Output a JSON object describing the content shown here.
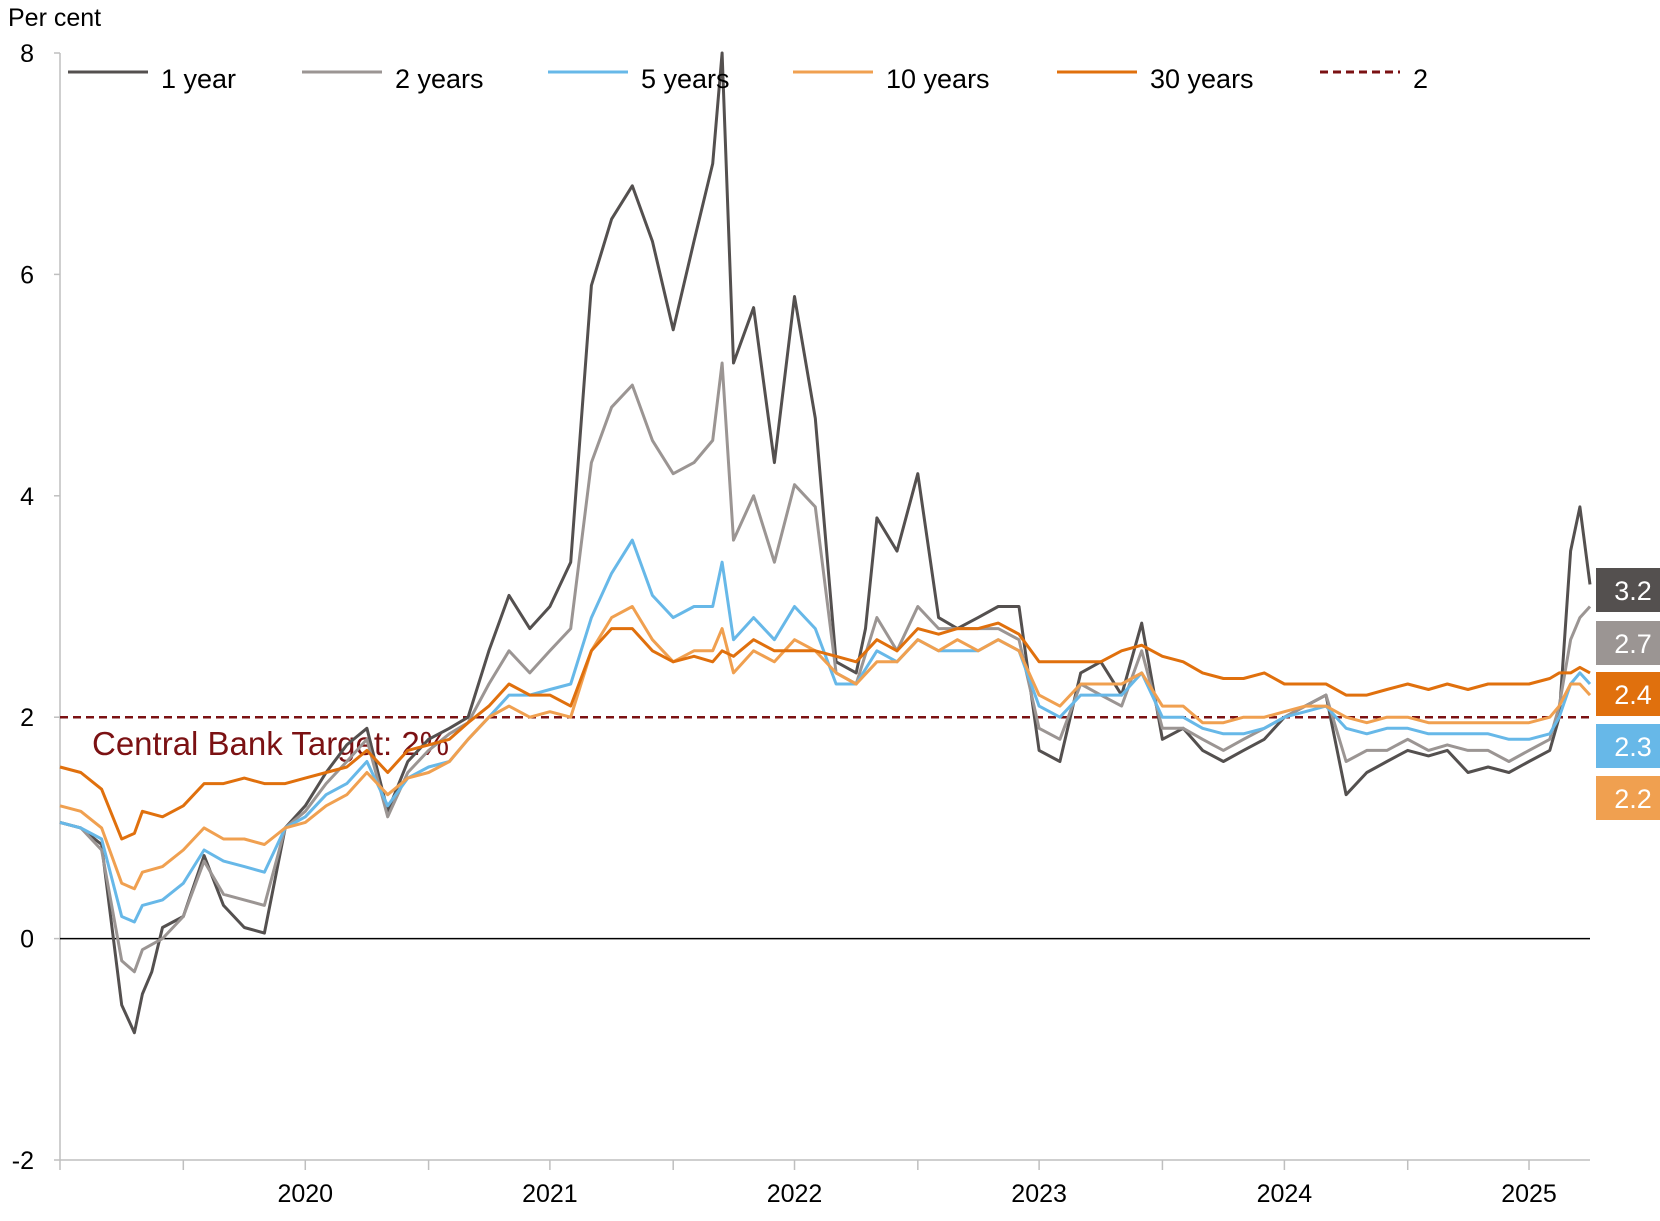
{
  "chart_data": {
    "type": "line",
    "ylabel": "Per cent",
    "ylim": [
      -2,
      8
    ],
    "yticks": [
      -2,
      0,
      2,
      4,
      6,
      8
    ],
    "xlim": [
      "2019-07-01",
      "2025-09-30"
    ],
    "xtick_labels": [
      "2020",
      "2021",
      "2022",
      "2023",
      "2024",
      "2025"
    ],
    "grid": false,
    "legend_placement": "top",
    "target": {
      "value": 2,
      "legend_label": "2",
      "annotation": "Central Bank Target: 2%",
      "color": "#7b1113"
    },
    "end_labels": [
      {
        "text": "3.2",
        "color": "#54504f",
        "series": "1 year"
      },
      {
        "text": "2.7",
        "color": "#9b9593",
        "series": "2 years"
      },
      {
        "text": "2.4",
        "color": "#e0700d",
        "series": "30 years"
      },
      {
        "text": "2.3",
        "color": "#67b8e8",
        "series": "5 years"
      },
      {
        "text": "2.2",
        "color": "#f0a050",
        "series": "10 years"
      }
    ],
    "series": [
      {
        "name": "1 year",
        "color": "#54504f",
        "x": [
          "2019-07-01",
          "2019-08-01",
          "2019-09-01",
          "2019-10-01",
          "2019-10-20",
          "2019-11-01",
          "2019-11-15",
          "2019-12-01",
          "2020-01-01",
          "2020-02-01",
          "2020-03-01",
          "2020-04-01",
          "2020-05-01",
          "2020-06-01",
          "2020-07-01",
          "2020-08-01",
          "2020-09-01",
          "2020-10-01",
          "2020-11-01",
          "2020-12-01",
          "2021-01-01",
          "2021-02-01",
          "2021-03-01",
          "2021-04-01",
          "2021-05-01",
          "2021-06-01",
          "2021-07-01",
          "2021-08-01",
          "2021-09-01",
          "2021-10-01",
          "2021-11-01",
          "2021-12-01",
          "2022-01-01",
          "2022-02-01",
          "2022-03-01",
          "2022-03-15",
          "2022-04-01",
          "2022-05-01",
          "2022-06-01",
          "2022-07-01",
          "2022-08-01",
          "2022-09-01",
          "2022-10-01",
          "2022-10-15",
          "2022-11-01",
          "2022-12-01",
          "2023-01-01",
          "2023-02-01",
          "2023-03-01",
          "2023-04-01",
          "2023-05-01",
          "2023-06-01",
          "2023-07-01",
          "2023-08-01",
          "2023-09-01",
          "2023-10-01",
          "2023-11-01",
          "2023-12-01",
          "2024-01-01",
          "2024-02-01",
          "2024-03-01",
          "2024-04-01",
          "2024-05-01",
          "2024-06-01",
          "2024-07-01",
          "2024-08-01",
          "2024-09-01",
          "2024-10-01",
          "2024-11-01",
          "2024-12-01",
          "2025-01-01",
          "2025-02-01",
          "2025-03-01",
          "2025-04-01",
          "2025-05-01",
          "2025-06-01",
          "2025-07-01",
          "2025-08-01",
          "2025-08-15",
          "2025-09-01",
          "2025-09-15",
          "2025-09-30"
        ],
        "y": [
          1.05,
          1.0,
          0.85,
          -0.6,
          -0.85,
          -0.5,
          -0.3,
          0.1,
          0.2,
          0.75,
          0.3,
          0.1,
          0.05,
          1.0,
          1.2,
          1.5,
          1.75,
          1.9,
          1.15,
          1.6,
          1.8,
          1.9,
          2.0,
          2.6,
          3.1,
          2.8,
          3.0,
          3.4,
          5.9,
          6.5,
          6.8,
          6.3,
          5.5,
          6.3,
          7.0,
          8.0,
          5.2,
          5.7,
          4.3,
          5.8,
          4.7,
          2.5,
          2.4,
          2.8,
          3.8,
          3.5,
          4.2,
          2.9,
          2.8,
          2.9,
          3.0,
          3.0,
          1.7,
          1.6,
          2.4,
          2.5,
          2.2,
          2.85,
          1.8,
          1.9,
          1.7,
          1.6,
          1.7,
          1.8,
          2.0,
          2.1,
          2.2,
          1.3,
          1.5,
          1.6,
          1.7,
          1.65,
          1.7,
          1.5,
          1.55,
          1.5,
          1.6,
          1.7,
          2.0,
          3.5,
          3.9,
          3.2
        ]
      },
      {
        "name": "2 years",
        "color": "#9b9593",
        "x": [
          "2019-07-01",
          "2019-08-01",
          "2019-09-01",
          "2019-10-01",
          "2019-10-20",
          "2019-11-01",
          "2019-12-01",
          "2020-01-01",
          "2020-02-01",
          "2020-03-01",
          "2020-04-01",
          "2020-05-01",
          "2020-06-01",
          "2020-07-01",
          "2020-08-01",
          "2020-09-01",
          "2020-10-01",
          "2020-11-01",
          "2020-12-01",
          "2021-01-01",
          "2021-02-01",
          "2021-03-01",
          "2021-04-01",
          "2021-05-01",
          "2021-06-01",
          "2021-07-01",
          "2021-08-01",
          "2021-09-01",
          "2021-10-01",
          "2021-11-01",
          "2021-12-01",
          "2022-01-01",
          "2022-02-01",
          "2022-03-01",
          "2022-03-15",
          "2022-04-01",
          "2022-05-01",
          "2022-06-01",
          "2022-07-01",
          "2022-08-01",
          "2022-09-01",
          "2022-10-01",
          "2022-11-01",
          "2022-12-01",
          "2023-01-01",
          "2023-02-01",
          "2023-03-01",
          "2023-04-01",
          "2023-05-01",
          "2023-06-01",
          "2023-07-01",
          "2023-08-01",
          "2023-09-01",
          "2023-10-01",
          "2023-11-01",
          "2023-12-01",
          "2024-01-01",
          "2024-02-01",
          "2024-03-01",
          "2024-04-01",
          "2024-05-01",
          "2024-06-01",
          "2024-07-01",
          "2024-08-01",
          "2024-09-01",
          "2024-10-01",
          "2024-11-01",
          "2024-12-01",
          "2025-01-01",
          "2025-02-01",
          "2025-03-01",
          "2025-04-01",
          "2025-05-01",
          "2025-06-01",
          "2025-07-01",
          "2025-08-01",
          "2025-08-15",
          "2025-09-01",
          "2025-09-15",
          "2025-09-30"
        ],
        "y": [
          1.05,
          1.0,
          0.8,
          -0.2,
          -0.3,
          -0.1,
          0.0,
          0.2,
          0.7,
          0.4,
          0.35,
          0.3,
          1.0,
          1.15,
          1.4,
          1.6,
          1.8,
          1.1,
          1.5,
          1.7,
          1.85,
          1.95,
          2.3,
          2.6,
          2.4,
          2.6,
          2.8,
          4.3,
          4.8,
          5.0,
          4.5,
          4.2,
          4.3,
          4.5,
          5.2,
          3.6,
          4.0,
          3.4,
          4.1,
          3.9,
          2.4,
          2.3,
          2.9,
          2.6,
          3.0,
          2.8,
          2.8,
          2.8,
          2.8,
          2.7,
          1.9,
          1.8,
          2.3,
          2.2,
          2.1,
          2.6,
          1.9,
          1.9,
          1.8,
          1.7,
          1.8,
          1.9,
          2.0,
          2.1,
          2.2,
          1.6,
          1.7,
          1.7,
          1.8,
          1.7,
          1.75,
          1.7,
          1.7,
          1.6,
          1.7,
          1.8,
          2.1,
          2.7,
          2.9,
          3.0
        ]
      },
      {
        "name": "5 years",
        "color": "#67b8e8",
        "x": [
          "2019-07-01",
          "2019-08-01",
          "2019-09-01",
          "2019-10-01",
          "2019-10-20",
          "2019-11-01",
          "2019-12-01",
          "2020-01-01",
          "2020-02-01",
          "2020-03-01",
          "2020-04-01",
          "2020-05-01",
          "2020-06-01",
          "2020-07-01",
          "2020-08-01",
          "2020-09-01",
          "2020-10-01",
          "2020-11-01",
          "2020-12-01",
          "2021-01-01",
          "2021-02-01",
          "2021-03-01",
          "2021-04-01",
          "2021-05-01",
          "2021-06-01",
          "2021-07-01",
          "2021-08-01",
          "2021-09-01",
          "2021-10-01",
          "2021-11-01",
          "2021-12-01",
          "2022-01-01",
          "2022-02-01",
          "2022-03-01",
          "2022-03-15",
          "2022-04-01",
          "2022-05-01",
          "2022-06-01",
          "2022-07-01",
          "2022-08-01",
          "2022-09-01",
          "2022-10-01",
          "2022-11-01",
          "2022-12-01",
          "2023-01-01",
          "2023-02-01",
          "2023-03-01",
          "2023-04-01",
          "2023-05-01",
          "2023-06-01",
          "2023-07-01",
          "2023-08-01",
          "2023-09-01",
          "2023-10-01",
          "2023-11-01",
          "2023-12-01",
          "2024-01-01",
          "2024-02-01",
          "2024-03-01",
          "2024-04-01",
          "2024-05-01",
          "2024-06-01",
          "2024-07-01",
          "2024-08-01",
          "2024-09-01",
          "2024-10-01",
          "2024-11-01",
          "2024-12-01",
          "2025-01-01",
          "2025-02-01",
          "2025-03-01",
          "2025-04-01",
          "2025-05-01",
          "2025-06-01",
          "2025-07-01",
          "2025-08-01",
          "2025-08-15",
          "2025-09-01",
          "2025-09-15",
          "2025-09-30"
        ],
        "y": [
          1.05,
          1.0,
          0.9,
          0.2,
          0.15,
          0.3,
          0.35,
          0.5,
          0.8,
          0.7,
          0.65,
          0.6,
          1.0,
          1.1,
          1.3,
          1.4,
          1.6,
          1.2,
          1.45,
          1.55,
          1.6,
          1.8,
          2.0,
          2.2,
          2.2,
          2.25,
          2.3,
          2.9,
          3.3,
          3.6,
          3.1,
          2.9,
          3.0,
          3.0,
          3.4,
          2.7,
          2.9,
          2.7,
          3.0,
          2.8,
          2.3,
          2.3,
          2.6,
          2.5,
          2.7,
          2.6,
          2.6,
          2.6,
          2.7,
          2.6,
          2.1,
          2.0,
          2.2,
          2.2,
          2.2,
          2.4,
          2.0,
          2.0,
          1.9,
          1.85,
          1.85,
          1.9,
          2.0,
          2.05,
          2.1,
          1.9,
          1.85,
          1.9,
          1.9,
          1.85,
          1.85,
          1.85,
          1.85,
          1.8,
          1.8,
          1.85,
          2.0,
          2.3,
          2.4,
          2.3
        ]
      },
      {
        "name": "10 years",
        "color": "#f0a050",
        "x": [
          "2019-07-01",
          "2019-08-01",
          "2019-09-01",
          "2019-10-01",
          "2019-10-20",
          "2019-11-01",
          "2019-12-01",
          "2020-01-01",
          "2020-02-01",
          "2020-03-01",
          "2020-04-01",
          "2020-05-01",
          "2020-06-01",
          "2020-07-01",
          "2020-08-01",
          "2020-09-01",
          "2020-10-01",
          "2020-11-01",
          "2020-12-01",
          "2021-01-01",
          "2021-02-01",
          "2021-03-01",
          "2021-04-01",
          "2021-05-01",
          "2021-06-01",
          "2021-07-01",
          "2021-08-01",
          "2021-09-01",
          "2021-10-01",
          "2021-11-01",
          "2021-12-01",
          "2022-01-01",
          "2022-02-01",
          "2022-03-01",
          "2022-03-15",
          "2022-04-01",
          "2022-05-01",
          "2022-06-01",
          "2022-07-01",
          "2022-08-01",
          "2022-09-01",
          "2022-10-01",
          "2022-11-01",
          "2022-12-01",
          "2023-01-01",
          "2023-02-01",
          "2023-03-01",
          "2023-04-01",
          "2023-05-01",
          "2023-06-01",
          "2023-07-01",
          "2023-08-01",
          "2023-09-01",
          "2023-10-01",
          "2023-11-01",
          "2023-12-01",
          "2024-01-01",
          "2024-02-01",
          "2024-03-01",
          "2024-04-01",
          "2024-05-01",
          "2024-06-01",
          "2024-07-01",
          "2024-08-01",
          "2024-09-01",
          "2024-10-01",
          "2024-11-01",
          "2024-12-01",
          "2025-01-01",
          "2025-02-01",
          "2025-03-01",
          "2025-04-01",
          "2025-05-01",
          "2025-06-01",
          "2025-07-01",
          "2025-08-01",
          "2025-08-15",
          "2025-09-01",
          "2025-09-15",
          "2025-09-30"
        ],
        "y": [
          1.2,
          1.15,
          1.0,
          0.5,
          0.45,
          0.6,
          0.65,
          0.8,
          1.0,
          0.9,
          0.9,
          0.85,
          1.0,
          1.05,
          1.2,
          1.3,
          1.5,
          1.3,
          1.45,
          1.5,
          1.6,
          1.8,
          2.0,
          2.1,
          2.0,
          2.05,
          2.0,
          2.6,
          2.9,
          3.0,
          2.7,
          2.5,
          2.6,
          2.6,
          2.8,
          2.4,
          2.6,
          2.5,
          2.7,
          2.6,
          2.4,
          2.3,
          2.5,
          2.5,
          2.7,
          2.6,
          2.7,
          2.6,
          2.7,
          2.6,
          2.2,
          2.1,
          2.3,
          2.3,
          2.3,
          2.4,
          2.1,
          2.1,
          1.95,
          1.95,
          2.0,
          2.0,
          2.05,
          2.1,
          2.1,
          2.0,
          1.95,
          2.0,
          2.0,
          1.95,
          1.95,
          1.95,
          1.95,
          1.95,
          1.95,
          2.0,
          2.1,
          2.3,
          2.3,
          2.2
        ]
      },
      {
        "name": "30 years",
        "color": "#e0700d",
        "x": [
          "2019-07-01",
          "2019-08-01",
          "2019-09-01",
          "2019-10-01",
          "2019-10-20",
          "2019-11-01",
          "2019-12-01",
          "2020-01-01",
          "2020-02-01",
          "2020-03-01",
          "2020-04-01",
          "2020-05-01",
          "2020-06-01",
          "2020-07-01",
          "2020-08-01",
          "2020-09-01",
          "2020-10-01",
          "2020-11-01",
          "2020-12-01",
          "2021-01-01",
          "2021-02-01",
          "2021-03-01",
          "2021-04-01",
          "2021-05-01",
          "2021-06-01",
          "2021-07-01",
          "2021-08-01",
          "2021-09-01",
          "2021-10-01",
          "2021-11-01",
          "2021-12-01",
          "2022-01-01",
          "2022-02-01",
          "2022-03-01",
          "2022-03-15",
          "2022-04-01",
          "2022-05-01",
          "2022-06-01",
          "2022-07-01",
          "2022-08-01",
          "2022-09-01",
          "2022-10-01",
          "2022-11-01",
          "2022-12-01",
          "2023-01-01",
          "2023-02-01",
          "2023-03-01",
          "2023-04-01",
          "2023-05-01",
          "2023-06-01",
          "2023-07-01",
          "2023-08-01",
          "2023-09-01",
          "2023-10-01",
          "2023-11-01",
          "2023-12-01",
          "2024-01-01",
          "2024-02-01",
          "2024-03-01",
          "2024-04-01",
          "2024-05-01",
          "2024-06-01",
          "2024-07-01",
          "2024-08-01",
          "2024-09-01",
          "2024-10-01",
          "2024-11-01",
          "2024-12-01",
          "2025-01-01",
          "2025-02-01",
          "2025-03-01",
          "2025-04-01",
          "2025-05-01",
          "2025-06-01",
          "2025-07-01",
          "2025-08-01",
          "2025-08-15",
          "2025-09-01",
          "2025-09-15",
          "2025-09-30"
        ],
        "y": [
          1.55,
          1.5,
          1.35,
          0.9,
          0.95,
          1.15,
          1.1,
          1.2,
          1.4,
          1.4,
          1.45,
          1.4,
          1.4,
          1.45,
          1.5,
          1.55,
          1.7,
          1.5,
          1.7,
          1.75,
          1.8,
          1.95,
          2.1,
          2.3,
          2.2,
          2.2,
          2.1,
          2.6,
          2.8,
          2.8,
          2.6,
          2.5,
          2.55,
          2.5,
          2.6,
          2.55,
          2.7,
          2.6,
          2.6,
          2.6,
          2.55,
          2.5,
          2.7,
          2.6,
          2.8,
          2.75,
          2.8,
          2.8,
          2.85,
          2.75,
          2.5,
          2.5,
          2.5,
          2.5,
          2.6,
          2.65,
          2.55,
          2.5,
          2.4,
          2.35,
          2.35,
          2.4,
          2.3,
          2.3,
          2.3,
          2.2,
          2.2,
          2.25,
          2.3,
          2.25,
          2.3,
          2.25,
          2.3,
          2.3,
          2.3,
          2.35,
          2.4,
          2.4,
          2.45,
          2.4
        ]
      }
    ]
  }
}
